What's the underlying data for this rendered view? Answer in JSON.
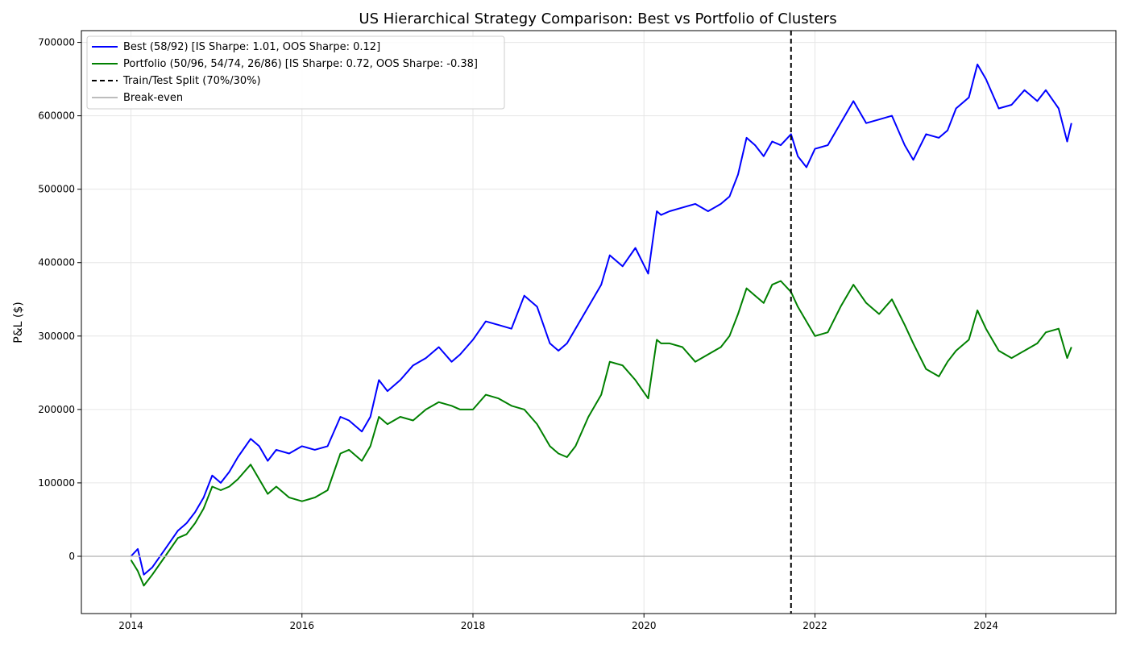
{
  "chart_data": {
    "type": "line",
    "title": "US Hierarchical Strategy Comparison: Best vs Portfolio of Clusters",
    "xlabel": "",
    "ylabel": "P&L ($)",
    "xlim": [
      2013.42,
      2025.52
    ],
    "ylim": [
      -78000,
      716000
    ],
    "x_ticks": [
      2014,
      2016,
      2018,
      2020,
      2022,
      2024
    ],
    "y_ticks": [
      0,
      100000,
      200000,
      300000,
      400000,
      500000,
      600000,
      700000
    ],
    "grid": true,
    "legend_position": "top-left",
    "train_test_split_x": 2021.72,
    "break_even_y": 0,
    "series": [
      {
        "name": "Best (58/92) [IS Sharpe: 1.01, OOS Sharpe: 0.12]",
        "color": "#0000ff",
        "x": [
          2014.0,
          2014.08,
          2014.15,
          2014.25,
          2014.4,
          2014.55,
          2014.65,
          2014.75,
          2014.85,
          2014.95,
          2015.05,
          2015.15,
          2015.25,
          2015.4,
          2015.5,
          2015.6,
          2015.7,
          2015.85,
          2016.0,
          2016.15,
          2016.3,
          2016.45,
          2016.55,
          2016.7,
          2016.8,
          2016.9,
          2017.0,
          2017.15,
          2017.3,
          2017.45,
          2017.6,
          2017.75,
          2017.85,
          2018.0,
          2018.15,
          2018.3,
          2018.45,
          2018.6,
          2018.75,
          2018.9,
          2019.0,
          2019.1,
          2019.2,
          2019.35,
          2019.5,
          2019.6,
          2019.75,
          2019.9,
          2020.05,
          2020.15,
          2020.2,
          2020.3,
          2020.45,
          2020.6,
          2020.75,
          2020.9,
          2021.0,
          2021.1,
          2021.2,
          2021.3,
          2021.4,
          2021.5,
          2021.6,
          2021.72,
          2021.8,
          2021.9,
          2022.0,
          2022.15,
          2022.3,
          2022.45,
          2022.6,
          2022.75,
          2022.9,
          2023.05,
          2023.15,
          2023.3,
          2023.45,
          2023.55,
          2023.65,
          2023.8,
          2023.9,
          2024.0,
          2024.15,
          2024.3,
          2024.45,
          2024.6,
          2024.7,
          2024.85,
          2024.95,
          2025.0
        ],
        "values": [
          0,
          10000,
          -25000,
          -15000,
          10000,
          35000,
          45000,
          60000,
          80000,
          110000,
          100000,
          115000,
          135000,
          160000,
          150000,
          130000,
          145000,
          140000,
          150000,
          145000,
          150000,
          190000,
          185000,
          170000,
          190000,
          240000,
          225000,
          240000,
          260000,
          270000,
          285000,
          265000,
          275000,
          295000,
          320000,
          315000,
          310000,
          355000,
          340000,
          290000,
          280000,
          290000,
          310000,
          340000,
          370000,
          410000,
          395000,
          420000,
          385000,
          470000,
          465000,
          470000,
          475000,
          480000,
          470000,
          480000,
          490000,
          520000,
          570000,
          560000,
          545000,
          565000,
          560000,
          575000,
          545000,
          530000,
          555000,
          560000,
          590000,
          620000,
          590000,
          595000,
          600000,
          560000,
          540000,
          575000,
          570000,
          580000,
          610000,
          625000,
          670000,
          650000,
          610000,
          615000,
          635000,
          620000,
          635000,
          610000,
          565000,
          590000
        ]
      },
      {
        "name": "Portfolio (50/96, 54/74, 26/86) [IS Sharpe: 0.72, OOS Sharpe: -0.38]",
        "color": "#008000",
        "x": [
          2014.0,
          2014.08,
          2014.15,
          2014.25,
          2014.4,
          2014.55,
          2014.65,
          2014.75,
          2014.85,
          2014.95,
          2015.05,
          2015.15,
          2015.25,
          2015.4,
          2015.5,
          2015.6,
          2015.7,
          2015.85,
          2016.0,
          2016.15,
          2016.3,
          2016.45,
          2016.55,
          2016.7,
          2016.8,
          2016.9,
          2017.0,
          2017.15,
          2017.3,
          2017.45,
          2017.6,
          2017.75,
          2017.85,
          2018.0,
          2018.15,
          2018.3,
          2018.45,
          2018.6,
          2018.75,
          2018.9,
          2019.0,
          2019.1,
          2019.2,
          2019.35,
          2019.5,
          2019.6,
          2019.75,
          2019.9,
          2020.05,
          2020.15,
          2020.2,
          2020.3,
          2020.45,
          2020.6,
          2020.75,
          2020.9,
          2021.0,
          2021.1,
          2021.2,
          2021.3,
          2021.4,
          2021.5,
          2021.6,
          2021.72,
          2021.8,
          2021.9,
          2022.0,
          2022.15,
          2022.3,
          2022.45,
          2022.6,
          2022.75,
          2022.9,
          2023.05,
          2023.15,
          2023.3,
          2023.45,
          2023.55,
          2023.65,
          2023.8,
          2023.9,
          2024.0,
          2024.15,
          2024.3,
          2024.45,
          2024.6,
          2024.7,
          2024.85,
          2024.95,
          2025.0
        ],
        "values": [
          -5000,
          -20000,
          -40000,
          -25000,
          0,
          25000,
          30000,
          45000,
          65000,
          95000,
          90000,
          95000,
          105000,
          125000,
          105000,
          85000,
          95000,
          80000,
          75000,
          80000,
          90000,
          140000,
          145000,
          130000,
          150000,
          190000,
          180000,
          190000,
          185000,
          200000,
          210000,
          205000,
          200000,
          200000,
          220000,
          215000,
          205000,
          200000,
          180000,
          150000,
          140000,
          135000,
          150000,
          190000,
          220000,
          265000,
          260000,
          240000,
          215000,
          295000,
          290000,
          290000,
          285000,
          265000,
          275000,
          285000,
          300000,
          330000,
          365000,
          355000,
          345000,
          370000,
          375000,
          360000,
          340000,
          320000,
          300000,
          305000,
          340000,
          370000,
          345000,
          330000,
          350000,
          315000,
          290000,
          255000,
          245000,
          265000,
          280000,
          295000,
          335000,
          310000,
          280000,
          270000,
          280000,
          290000,
          305000,
          310000,
          270000,
          285000
        ]
      }
    ],
    "legend": [
      {
        "label": "Best (58/92) [IS Sharpe: 1.01, OOS Sharpe: 0.12]",
        "color": "#0000ff",
        "style": "solid"
      },
      {
        "label": "Portfolio (50/96, 54/74, 26/86) [IS Sharpe: 0.72, OOS Sharpe: -0.38]",
        "color": "#008000",
        "style": "solid"
      },
      {
        "label": "Train/Test Split (70%/30%)",
        "color": "#000000",
        "style": "dashed"
      },
      {
        "label": "Break-even",
        "color": "#bdbdbd",
        "style": "solid"
      }
    ]
  }
}
